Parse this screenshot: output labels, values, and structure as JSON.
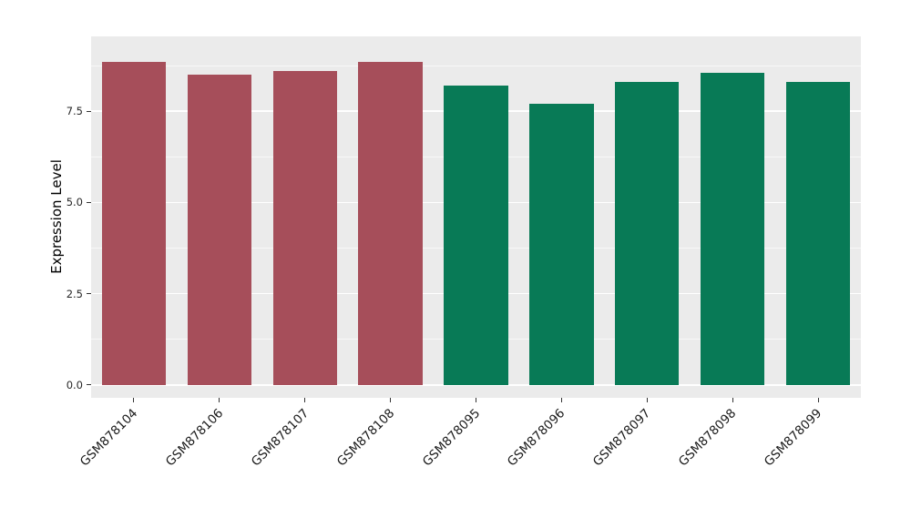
{
  "chart_data": {
    "type": "bar",
    "title": "",
    "xlabel": "",
    "ylabel": "Expression Level",
    "categories": [
      "GSM878104",
      "GSM878106",
      "GSM878107",
      "GSM878108",
      "GSM878095",
      "GSM878096",
      "GSM878097",
      "GSM878098",
      "GSM878099"
    ],
    "values": [
      8.85,
      8.5,
      8.6,
      8.85,
      8.2,
      7.7,
      8.3,
      8.55,
      8.3
    ],
    "bar_colors": [
      "#A64E5A",
      "#A64E5A",
      "#A64E5A",
      "#A64E5A",
      "#087A56",
      "#087A56",
      "#087A56",
      "#087A56",
      "#087A56"
    ],
    "groups": [
      {
        "color": "#A64E5A",
        "samples": [
          "GSM878104",
          "GSM878106",
          "GSM878107",
          "GSM878108"
        ]
      },
      {
        "color": "#087A56",
        "samples": [
          "GSM878095",
          "GSM878096",
          "GSM878097",
          "GSM878098",
          "GSM878099"
        ]
      }
    ],
    "yticks": [
      0,
      2.5,
      5,
      7.5
    ],
    "ytick_labels": [
      "0.0",
      "2.5",
      "5.0",
      "7.5"
    ],
    "minor_gridlines": [
      1.25,
      3.75,
      6.25,
      8.75
    ],
    "ylim": [
      -0.35,
      9.55
    ],
    "bar_width_fraction": 0.75,
    "panel_bg": "#EBEBEB",
    "grid_color": "#FFFFFF",
    "tick_color": "#333333",
    "legend": "none",
    "grid": "on"
  }
}
